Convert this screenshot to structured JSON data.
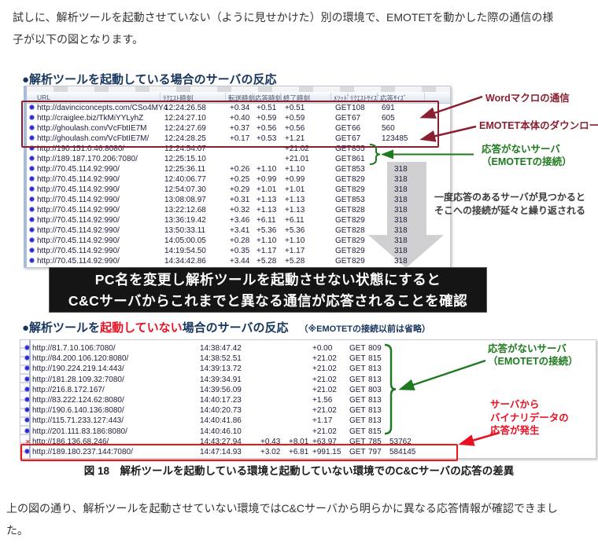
{
  "colors": {
    "maroon": "#8b1f2f",
    "green": "#1e7a1e",
    "bright_red": "#e81123",
    "navy": "#17365d",
    "banner_bg": "#151515"
  },
  "intro": "試しに、解析ツールを起動させていない（ように見せかけた）別の環境で、EMOTETを動かした際の通信の様子が以下の図となります。",
  "section1": {
    "title": "●解析ツールを起動している場合のサーバの反応"
  },
  "table1": {
    "headers": [
      "URL",
      "ﾘｸｴｽﾄ時刻",
      "転送時刻",
      "応答時刻",
      "終了時刻",
      "ﾒｿｯﾄﾞ",
      "ﾘｸｴｽﾄｻｲｽﾞ",
      "応答ｻｲｽﾞ"
    ],
    "rows": [
      {
        "icon": "dot",
        "url": "http://davinciconcepts.com/CSo4MY4",
        "t1": "12:24:26.58",
        "t2": "+0.34",
        "t3": "+0.51",
        "t4": "+0.51",
        "m": "GET",
        "s1": "108",
        "s2": "691"
      },
      {
        "icon": "dot",
        "url": "http://craiglee.biz/TkMiYYLyhZ",
        "t1": "12:24:27.10",
        "t2": "+0.40",
        "t3": "+0.59",
        "t4": "+0.59",
        "m": "GET",
        "s1": "67",
        "s2": "605"
      },
      {
        "icon": "dot",
        "url": "http://ghoulash.com/VcFbtIE7M",
        "t1": "12:24:27.69",
        "t2": "+0.37",
        "t3": "+0.56",
        "t4": "+0.56",
        "m": "GET",
        "s1": "66",
        "s2": "560"
      },
      {
        "icon": "dot",
        "url": "http://ghoulash.com/VcFbtIE7M/",
        "t1": "12:24:28.25",
        "t2": "+0.17",
        "t3": "+0.53",
        "t4": "+1.21",
        "m": "GET",
        "s1": "67",
        "s2": "123485"
      },
      {
        "icon": "dot",
        "url": "http://190.151.0.46:8080/",
        "t1": "12:24:54.07",
        "t2": "",
        "t3": "",
        "t4": "+21.02",
        "m": "GET",
        "s1": "855",
        "s2": ""
      },
      {
        "icon": "dot",
        "url": "http://189.187.170.206:7080/",
        "t1": "12:25:15.10",
        "t2": "",
        "t3": "",
        "t4": "+21.01",
        "m": "GET",
        "s1": "861",
        "s2": ""
      },
      {
        "icon": "dot",
        "url": "http://70.45.114.92:990/",
        "t1": "12:25:36.11",
        "t2": "+0.26",
        "t3": "+1.10",
        "t4": "+1.10",
        "m": "GET",
        "s1": "853",
        "s2": "318"
      },
      {
        "icon": "dot",
        "url": "http://70.45.114.92:990/",
        "t1": "12:40:06.77",
        "t2": "+0.25",
        "t3": "+0.99",
        "t4": "+0.99",
        "m": "GET",
        "s1": "829",
        "s2": "318"
      },
      {
        "icon": "dot",
        "url": "http://70.45.114.92:990/",
        "t1": "12:54:07.30",
        "t2": "+0.29",
        "t3": "+1.01",
        "t4": "+1.01",
        "m": "GET",
        "s1": "829",
        "s2": "318"
      },
      {
        "icon": "dot",
        "url": "http://70.45.114.92:990/",
        "t1": "13:08:08.97",
        "t2": "+0.31",
        "t3": "+1.13",
        "t4": "+1.13",
        "m": "GET",
        "s1": "853",
        "s2": "318"
      },
      {
        "icon": "dot",
        "url": "http://70.45.114.92:990/",
        "t1": "13:22:12.68",
        "t2": "+0.32",
        "t3": "+1.13",
        "t4": "+1.13",
        "m": "GET",
        "s1": "828",
        "s2": "318"
      },
      {
        "icon": "dot",
        "url": "http://70.45.114.92:990/",
        "t1": "13:36:19.42",
        "t2": "+3.46",
        "t3": "+6.11",
        "t4": "+6.11",
        "m": "GET",
        "s1": "829",
        "s2": "318"
      },
      {
        "icon": "dot",
        "url": "http://70.45.114.92:990/",
        "t1": "13:50:33.11",
        "t2": "+3.41",
        "t3": "+5.36",
        "t4": "+5.36",
        "m": "GET",
        "s1": "828",
        "s2": "318"
      },
      {
        "icon": "dot",
        "url": "http://70.45.114.92:990/",
        "t1": "14:05:00.05",
        "t2": "+0.28",
        "t3": "+1.10",
        "t4": "+1.10",
        "m": "GET",
        "s1": "829",
        "s2": "318"
      },
      {
        "icon": "dot",
        "url": "http://70.45.114.92:990/",
        "t1": "14:19:54.50",
        "t2": "+0.35",
        "t3": "+1.17",
        "t4": "+1.17",
        "m": "GET",
        "s1": "829",
        "s2": "318"
      },
      {
        "icon": "dot",
        "url": "http://70.45.114.92:990/",
        "t1": "14:34:42.86",
        "t2": "+3.44",
        "t3": "+5.28",
        "t4": "+5.28",
        "m": "GET",
        "s1": "829",
        "s2": "318"
      }
    ]
  },
  "annotations1": {
    "word_macro": "Wordマクロの通信",
    "emotet_download": "EMOTET本体のダウンロード",
    "no_response_line1": "応答がないサーバ",
    "no_response_line2": "（EMOTETの接続）",
    "repeat_line1": "一度応答のあるサーバが見つかると",
    "repeat_line2": "そこへの接続が延々と繰り返される"
  },
  "banner": {
    "line1": "PC名を変更し解析ツールを起動させない状態にすると",
    "line2": "C&Cサーバからこれまでと異なる通信が応答されることを確認"
  },
  "section2": {
    "title_pre": "●解析ツールを",
    "title_red": "起動していない",
    "title_post": "場合のサーバの反応",
    "note": "（※EMOTETの接続以前は省略）"
  },
  "table2": {
    "rows": [
      {
        "icon": "dot",
        "url": "http://81.7.10.106:7080/",
        "t1": "14:38:47.42",
        "t2": "",
        "t3": "",
        "t4": "+0.00",
        "m": "GET",
        "s1": "809",
        "s2": ""
      },
      {
        "icon": "dot",
        "url": "http://84.200.106.120:8080/",
        "t1": "14:38:52.51",
        "t2": "",
        "t3": "",
        "t4": "+21.02",
        "m": "GET",
        "s1": "815",
        "s2": ""
      },
      {
        "icon": "dot",
        "url": "http://190.224.219.14:443/",
        "t1": "14:39:13.72",
        "t2": "",
        "t3": "",
        "t4": "+21.02",
        "m": "GET",
        "s1": "813",
        "s2": ""
      },
      {
        "icon": "dot",
        "url": "http://181.28.109.32:7080/",
        "t1": "14:39:34.91",
        "t2": "",
        "t3": "",
        "t4": "+21.02",
        "m": "GET",
        "s1": "813",
        "s2": ""
      },
      {
        "icon": "dot",
        "url": "http://216.8.172.167/",
        "t1": "14:39:56.09",
        "t2": "",
        "t3": "",
        "t4": "+21.02",
        "m": "GET",
        "s1": "803",
        "s2": ""
      },
      {
        "icon": "dot",
        "url": "http://83.222.124.62:8080/",
        "t1": "14:40:17.23",
        "t2": "",
        "t3": "",
        "t4": "+1.56",
        "m": "GET",
        "s1": "813",
        "s2": ""
      },
      {
        "icon": "dot",
        "url": "http://190.6.140.136:8080/",
        "t1": "14:40:20.73",
        "t2": "",
        "t3": "",
        "t4": "+21.02",
        "m": "GET",
        "s1": "813",
        "s2": ""
      },
      {
        "icon": "dot",
        "url": "http://115.71.233.127:443/",
        "t1": "14:40:41.86",
        "t2": "",
        "t3": "",
        "t4": "+1.17",
        "m": "GET",
        "s1": "813",
        "s2": ""
      },
      {
        "icon": "dot",
        "url": "http://201.111.83.186:8080/",
        "t1": "14:40:46.10",
        "t2": "",
        "t3": "",
        "t4": "+21.02",
        "m": "GET",
        "s1": "815",
        "s2": ""
      },
      {
        "icon": "x",
        "url": "http://186.136.68.246/",
        "t1": "14:43:27.94",
        "t2": "+0.43",
        "t3": "+8.01",
        "t4": "+63.97",
        "m": "GET",
        "s1": "785",
        "s2": "53762"
      },
      {
        "icon": "dot",
        "url": "http://189.180.237.144:7080/",
        "t1": "14:47:14.93",
        "t2": "+3.02",
        "t3": "+6.81",
        "t4": "+991.15",
        "m": "GET",
        "s1": "797",
        "s2": "584145"
      }
    ]
  },
  "annotations2": {
    "no_response_line1": "応答がないサーバ",
    "no_response_line2": "（EMOTETの接続）",
    "binary_line1": "サーバから",
    "binary_line2": "バイナリデータの",
    "binary_line3": "応答が発生"
  },
  "caption": "図 18　解析ツールを起動している環境と起動していない環境でのC&Cサーバの応答の差異",
  "outro": "上の図の通り、解析ツールを起動させていない環境ではC&Cサーバから明らかに異なる応答情報が確認できました。"
}
